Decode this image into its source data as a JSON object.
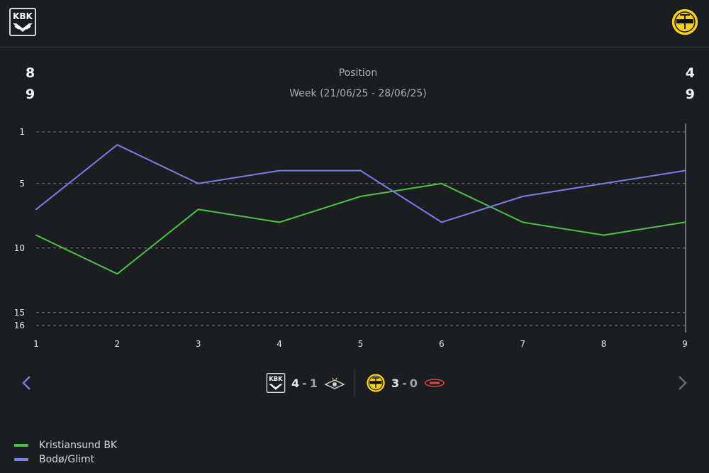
{
  "header": {
    "home_logo_text": "KBK",
    "away_logo_text": "BODØ/GLIMT"
  },
  "stats": {
    "home_position": "8",
    "home_week": "9",
    "away_position": "4",
    "away_week": "9",
    "metric_label": "Position",
    "period_label": "Week (21/06/25 - 28/06/25)"
  },
  "chart_data": {
    "type": "line",
    "x": [
      1,
      2,
      3,
      4,
      5,
      6,
      7,
      8,
      9
    ],
    "y_ticks": [
      1,
      5,
      10,
      15,
      16
    ],
    "ylim": [
      1,
      16
    ],
    "y_inverted": true,
    "grid": true,
    "legend_position": "bottom-left",
    "series": [
      {
        "name": "Kristiansund BK",
        "color": "#4cc14c",
        "values": [
          9,
          12,
          7,
          8,
          6,
          5,
          8,
          9,
          8
        ]
      },
      {
        "name": "Bodø/Glimt",
        "color": "#7b7bea",
        "values": [
          7,
          2,
          5,
          4,
          4,
          8,
          6,
          5,
          4
        ]
      }
    ]
  },
  "results": {
    "prev_icon": "chevron-left-icon",
    "next_icon": "chevron-right-icon",
    "match1": {
      "home_goals": "4",
      "away_goals": "1",
      "separator": "-"
    },
    "match2": {
      "home_goals": "3",
      "away_goals": "0",
      "separator": "-"
    }
  },
  "colors": {
    "background": "#1b1e21",
    "accent_nav": "#7b7bea"
  }
}
